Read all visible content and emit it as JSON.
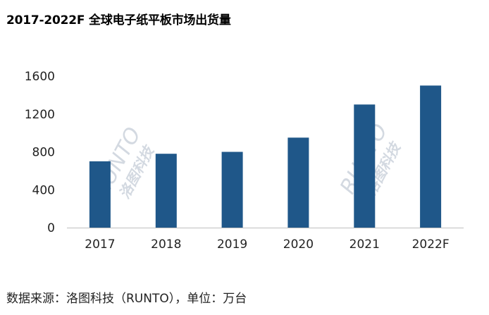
{
  "title": "2017-2022F 全球电子纸平板市场出货量",
  "source_note": "数据来源：洛图科技（RUNTO），单位：万台",
  "watermark": {
    "brand": "RUNTO",
    "cn": "洛图科技"
  },
  "colors": {
    "bar": "#1f5789",
    "axis": "#bfbfbf"
  },
  "chart_data": {
    "type": "bar",
    "title": "2017-2022F 全球电子纸平板市场出货量",
    "categories": [
      "2017",
      "2018",
      "2019",
      "2020",
      "2021",
      "2022F"
    ],
    "values": [
      700,
      780,
      800,
      950,
      1300,
      1500
    ],
    "ylim": [
      0,
      1600
    ],
    "yticks": [
      "0",
      "400",
      "800",
      "1200",
      "1600"
    ],
    "xlabel": "",
    "ylabel": "",
    "grid": false,
    "legend": "none"
  }
}
